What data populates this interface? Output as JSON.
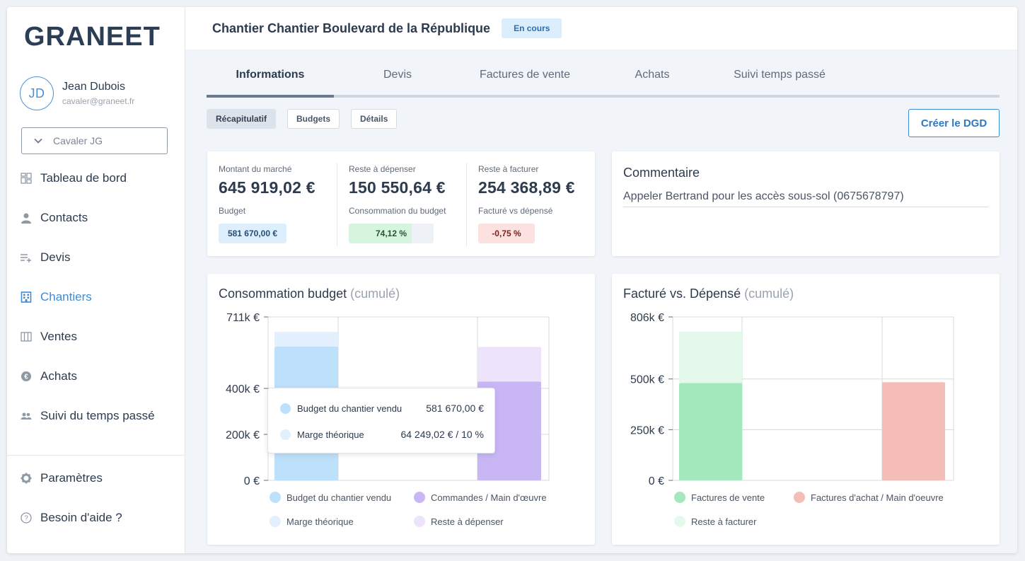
{
  "brand": {
    "logo_text": "GRANEET",
    "accent": "#3f8bd6"
  },
  "user": {
    "initials": "JD",
    "name": "Jean Dubois",
    "email": "cavaler@graneet.fr"
  },
  "company_select": {
    "value": "Cavaler JG",
    "icon": "chevron-down-icon"
  },
  "nav": {
    "items": [
      {
        "label": "Tableau de bord",
        "icon": "dashboard-icon"
      },
      {
        "label": "Contacts",
        "icon": "person-icon"
      },
      {
        "label": "Devis",
        "icon": "list-add-icon"
      },
      {
        "label": "Chantiers",
        "icon": "building-icon",
        "active": true
      },
      {
        "label": "Ventes",
        "icon": "columns-icon"
      },
      {
        "label": "Achats",
        "icon": "euro-coin-icon"
      },
      {
        "label": "Suivi du temps passé",
        "icon": "people-icon"
      }
    ],
    "bottom": [
      {
        "label": "Paramètres",
        "icon": "gear-icon"
      },
      {
        "label": "Besoin d'aide ?",
        "icon": "help-icon"
      }
    ]
  },
  "header": {
    "title": "Chantier Chantier Boulevard de la République",
    "status": "En cours"
  },
  "tabs": [
    "Informations",
    "Devis",
    "Factures de vente",
    "Achats",
    "Suivi temps passé"
  ],
  "subtabs": [
    "Récapitulatif",
    "Budgets",
    "Détails"
  ],
  "dgd_button": "Créer le DGD",
  "kpis": [
    {
      "label": "Montant du marché",
      "value": "645 919,02 €",
      "sub": "Budget",
      "pill": "581 670,00 €"
    },
    {
      "label": "Reste à dépenser",
      "value": "150 550,64 €",
      "sub": "Consommation du budget",
      "pill": "74,12 %",
      "progress": 0.7412
    },
    {
      "label": "Reste à facturer",
      "value": "254 368,89 €",
      "sub": "Facturé vs dépensé",
      "pill": "-0,75 %"
    }
  ],
  "comment": {
    "title": "Commentaire",
    "text": "Appeler Bertrand pour les accès sous-sol (0675678797)"
  },
  "chart_data": [
    {
      "type": "bar",
      "title": "Consommation budget",
      "title_suffix": "(cumulé)",
      "y_ticks": [
        {
          "value": 0,
          "label": "0 €"
        },
        {
          "value": 200000,
          "label": "200k €"
        },
        {
          "value": 400000,
          "label": "400k €"
        },
        {
          "value": 711000,
          "label": "711k €"
        }
      ],
      "ylim": [
        0,
        711000
      ],
      "stacks": [
        {
          "segments": [
            {
              "series": "Budget du chantier vendu",
              "value": 581670.0,
              "color": "#bde0fb"
            },
            {
              "series": "Marge théorique",
              "value": 64249.02,
              "color": "#e1f0fc"
            }
          ]
        },
        {
          "segments": [
            {
              "series": "Commandes / Main d'œuvre",
              "value": 430000,
              "color": "#c9b6f5"
            },
            {
              "series": "Reste à dépenser",
              "value": 150550.64,
              "color": "#ede3fb"
            }
          ]
        }
      ],
      "legend": [
        {
          "label": "Budget du chantier vendu",
          "color": "#bde0fb"
        },
        {
          "label": "Commandes / Main d'œuvre",
          "color": "#c9b6f5"
        },
        {
          "label": "Marge théorique",
          "color": "#e1f0fc"
        },
        {
          "label": "Reste à dépenser",
          "color": "#ede3fb"
        }
      ],
      "tooltip": [
        {
          "label": "Budget du chantier vendu",
          "value": "581 670,00 €",
          "color": "#bde0fb"
        },
        {
          "label": "Marge théorique",
          "value": "64 249,02 € / 10 %",
          "color": "#e1f0fc"
        }
      ]
    },
    {
      "type": "bar",
      "title": "Facturé vs. Dépensé",
      "title_suffix": "(cumulé)",
      "y_ticks": [
        {
          "value": 0,
          "label": "0 €"
        },
        {
          "value": 250000,
          "label": "250k €"
        },
        {
          "value": 500000,
          "label": "500k €"
        },
        {
          "value": 806000,
          "label": "806k €"
        }
      ],
      "ylim": [
        0,
        806000
      ],
      "stacks": [
        {
          "segments": [
            {
              "series": "Factures de vente",
              "value": 480000,
              "color": "#a4e8bd"
            },
            {
              "series": "Reste à facturer",
              "value": 254368.89,
              "color": "#e4f9eb"
            }
          ]
        },
        {
          "segments": [
            {
              "series": "Factures d'achat / Main d'oeuvre",
              "value": 484000,
              "color": "#f5bdb7"
            }
          ]
        }
      ],
      "legend": [
        {
          "label": "Factures de vente",
          "color": "#a4e8bd"
        },
        {
          "label": "Factures d'achat / Main d'oeuvre",
          "color": "#f5bdb7"
        },
        {
          "label": "Reste à facturer",
          "color": "#e4f9eb"
        }
      ]
    }
  ]
}
